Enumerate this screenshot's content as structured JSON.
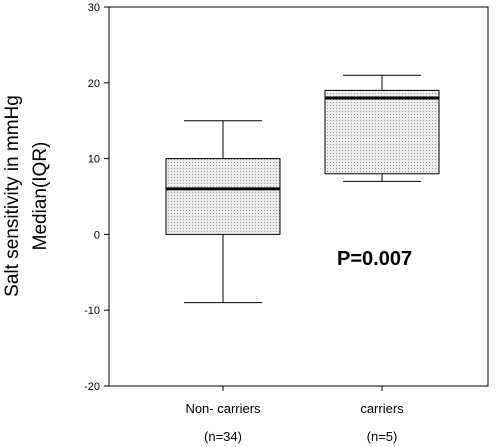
{
  "chart_data": {
    "type": "box",
    "ylabel_lines": [
      "Salt sensitivity in mmHg",
      "Median(IQR)"
    ],
    "ylim": [
      -20,
      30
    ],
    "yticks": [
      -20,
      -10,
      0,
      10,
      20,
      30
    ],
    "categories": [
      {
        "label": "Non- carriers",
        "sublabel": "(n=34)",
        "min": -9,
        "q1": 0,
        "median": 6,
        "q3": 10,
        "max": 15
      },
      {
        "label": "carriers",
        "sublabel": "(n=5)",
        "min": 7,
        "q1": 8,
        "median": 18,
        "q3": 19,
        "max": 21
      }
    ],
    "annotation": "P=0.007",
    "grid": false,
    "box_fill": "#e4e4e4",
    "line_color": "#000000"
  }
}
